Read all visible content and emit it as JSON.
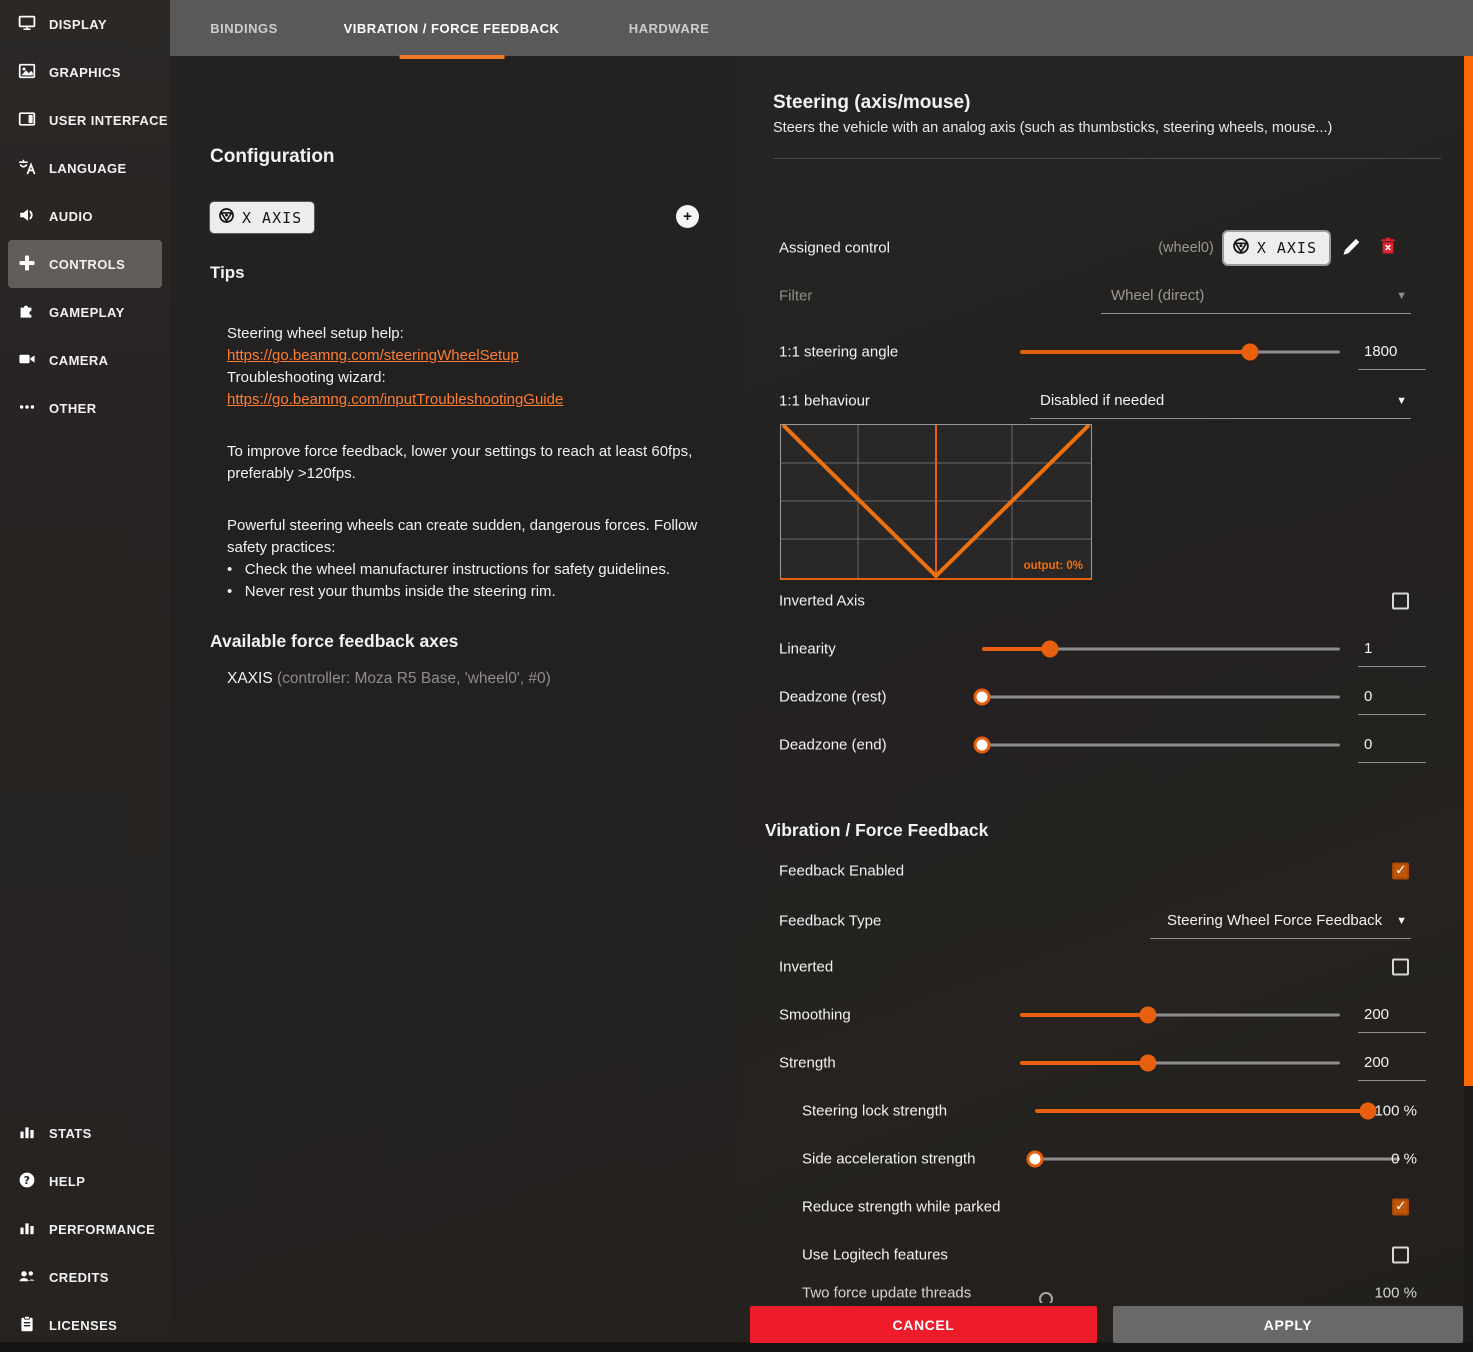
{
  "sidebar": {
    "top_items": [
      {
        "label": "DISPLAY",
        "icon": "display-icon"
      },
      {
        "label": "GRAPHICS",
        "icon": "graphics-icon"
      },
      {
        "label": "USER INTERFACE",
        "icon": "user-interface-icon"
      },
      {
        "label": "LANGUAGE",
        "icon": "language-icon"
      },
      {
        "label": "AUDIO",
        "icon": "audio-icon"
      },
      {
        "label": "CONTROLS",
        "icon": "gamepad-icon",
        "active": true
      },
      {
        "label": "GAMEPLAY",
        "icon": "puzzle-icon"
      },
      {
        "label": "CAMERA",
        "icon": "camera-icon"
      },
      {
        "label": "OTHER",
        "icon": "ellipsis-icon"
      }
    ],
    "bottom_items": [
      {
        "label": "STATS",
        "icon": "bar-chart-icon"
      },
      {
        "label": "HELP",
        "icon": "question-circle-icon"
      },
      {
        "label": "PERFORMANCE",
        "icon": "bar-chart-icon"
      },
      {
        "label": "CREDITS",
        "icon": "people-icon"
      },
      {
        "label": "LICENSES",
        "icon": "clipboard-icon"
      }
    ]
  },
  "tabs": [
    {
      "label": "BINDINGS",
      "active": false
    },
    {
      "label": "VIBRATION / FORCE FEEDBACK",
      "active": true
    },
    {
      "label": "HARDWARE",
      "active": false
    }
  ],
  "left_panel": {
    "configuration_title": "Configuration",
    "axis_chip": "X AXIS",
    "add_button": "+",
    "tips_title": "Tips",
    "tips": {
      "line1": "Steering wheel setup help:",
      "link1": "https://go.beamng.com/steeringWheelSetup",
      "line2": "Troubleshooting wizard:",
      "link2": "https://go.beamng.com/inputTroubleshootingGuide",
      "para1": "To improve force feedback, lower your settings to reach at least 60fps, preferably >120fps.",
      "para2": "Powerful steering wheels can create sudden, dangerous forces. Follow safety practices:",
      "bullet1": "Check the wheel manufacturer instructions for safety guidelines.",
      "bullet2": "Never rest your thumbs inside the steering rim."
    },
    "axes_title": "Available force feedback axes",
    "axis_name": "XAXIS",
    "axis_detail": "(controller: Moza R5 Base, 'wheel0', #0)"
  },
  "steering": {
    "title": "Steering (axis/mouse)",
    "description": "Steers the vehicle with an analog axis (such as thumbsticks, steering wheels, mouse...)",
    "assigned_control_label": "Assigned control",
    "device": "(wheel0)",
    "control_chip": "X AXIS",
    "filter_label": "Filter",
    "filter_value": "Wheel (direct)",
    "steering_angle_label": "1:1 steering angle",
    "behaviour_label": "1:1 behaviour",
    "behaviour_value": "Disabled if needed",
    "graph_output_label": "output: 0%",
    "inverted_axis_label": "Inverted Axis",
    "linearity_label": "Linearity",
    "deadzone_rest_label": "Deadzone (rest)",
    "deadzone_end_label": "Deadzone (end)"
  },
  "ffb": {
    "title": "Vibration / Force Feedback",
    "feedback_enabled_label": "Feedback Enabled",
    "feedback_type_label": "Feedback Type",
    "feedback_type_value": "Steering Wheel Force Feedback",
    "inverted_label": "Inverted",
    "smoothing_label": "Smoothing",
    "strength_label": "Strength",
    "lock_label": "Steering lock strength",
    "side_label": "Side acceleration strength",
    "parked_label": "Reduce strength while parked",
    "logitech_label": "Use Logitech features",
    "partial_label": "Two force update threads",
    "partial_value": "100 %"
  },
  "sliders": {
    "steering_angle": {
      "pct": 72,
      "value": "1800"
    },
    "linearity": {
      "pct": 19,
      "value": "1"
    },
    "deadzone_rest": {
      "pct": 0,
      "value": "0"
    },
    "deadzone_end": {
      "pct": 0,
      "value": "0"
    },
    "smoothing": {
      "pct": 40,
      "value": "200"
    },
    "strength": {
      "pct": 40,
      "value": "200"
    },
    "steering_lock": {
      "pct": 100,
      "value": "100 %"
    },
    "side_accel": {
      "pct": 0,
      "value": "0 %"
    }
  },
  "checkbox_states": {
    "inverted_axis": false,
    "feedback_enabled": true,
    "inverted": false,
    "reduce_parked": true,
    "logitech": false
  },
  "footer": {
    "cancel": "CANCEL",
    "apply": "APPLY"
  },
  "colors": {
    "accent_orange": "#ff6a00",
    "slider_orange": "#e8600e",
    "tab_underline": "#ef7622",
    "link_orange": "#ff7d33",
    "checkbox_checked": "#c05607",
    "cancel_red": "#ee1b2b",
    "delete_red": "#e8212e",
    "apply_gray": "#696969",
    "tabbar_gray": "#595959"
  }
}
